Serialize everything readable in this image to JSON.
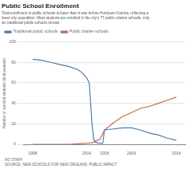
{
  "chart_data": {
    "type": "line",
    "title": "Public School Enrollment",
    "subtitle": "Total enrollment in public schools is lower than it was before Hurricane Katrina, reflecting a\nlower city population. Most students are enrolled in the city’s 77 public charter schools; only\nsix traditional public schools remain.",
    "ylabel": "Number of enrolled students (in thousands)",
    "annotations": [
      "NO STAFF",
      "SOURCE: NEW SCHOOLS FOR NEW ORLEANS; PUBLIC IMPACT"
    ],
    "series": [
      {
        "name": "Traditional public schools",
        "color": "#4f7cac",
        "x": [
          1998,
          1999,
          2000,
          2001,
          2002,
          2003,
          2003.5,
          2004,
          2004.3,
          2004.6,
          2004.8,
          2005.0,
          2005.2,
          2005.5,
          2005.8,
          2006,
          2007,
          2008,
          2009,
          2010,
          2011,
          2012,
          2013,
          2014
        ],
        "values": [
          83,
          82,
          80,
          78,
          76,
          73,
          70,
          65,
          60,
          20,
          5,
          2,
          1.5,
          1,
          1,
          14,
          15,
          16,
          16,
          14,
          11,
          9,
          6,
          4
        ]
      },
      {
        "name": "Public charter schools",
        "color": "#c26b4e",
        "x": [
          1998,
          1999,
          2000,
          2001,
          2002,
          2003,
          2004,
          2004.5,
          2004.8,
          2005.0,
          2005.5,
          2006,
          2007,
          2008,
          2009,
          2010,
          2011,
          2012,
          2013,
          2014
        ],
        "values": [
          0,
          0,
          0,
          0,
          0,
          0.5,
          1,
          1.5,
          2,
          3,
          5,
          14,
          21,
          27,
          31,
          35,
          37,
          40,
          43,
          46
        ]
      }
    ],
    "xlim": [
      1997,
      2015
    ],
    "xticks": [
      1998,
      2004,
      2006,
      2009,
      2014
    ],
    "ylim": [
      0,
      100
    ],
    "yticks": [
      0,
      20,
      40,
      60,
      80,
      100
    ],
    "grid": true,
    "legend": "upper left"
  }
}
